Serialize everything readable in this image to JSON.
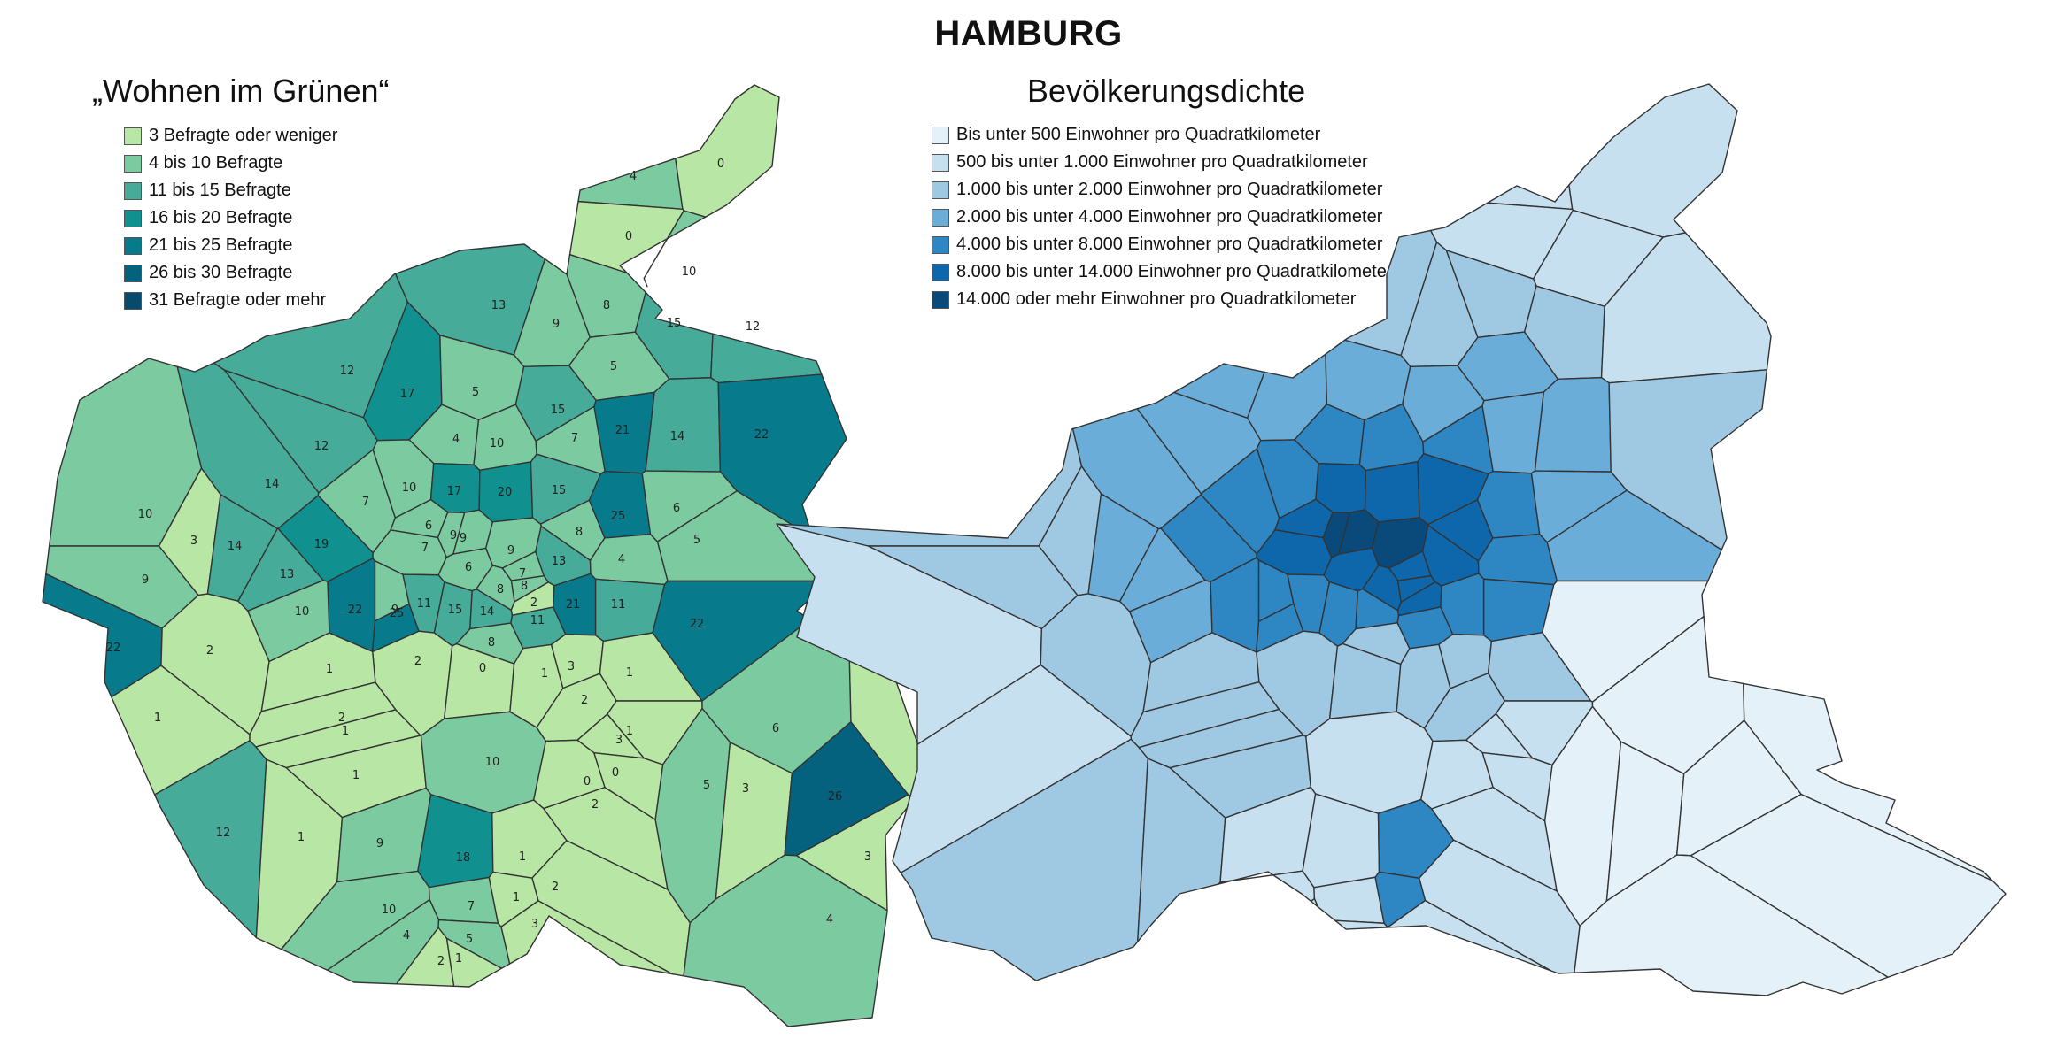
{
  "title": "HAMBURG",
  "left_map": {
    "subtitle": "„Wohnen im Grünen“",
    "legend": [
      {
        "label": "3 Befragte oder weniger",
        "color": "#b8e6a4"
      },
      {
        "label": "4 bis 10 Befragte",
        "color": "#7ccba0"
      },
      {
        "label": "11 bis 15 Befragte",
        "color": "#46ab99"
      },
      {
        "label": "16 bis 20 Befragte",
        "color": "#10918f"
      },
      {
        "label": "21 bis 25 Befragte",
        "color": "#077a8c"
      },
      {
        "label": "26 bis 30 Befragte",
        "color": "#04627e"
      },
      {
        "label": "31 Befragte oder mehr",
        "color": "#044b6e"
      }
    ],
    "district_values": [
      "4",
      "0",
      "0",
      "10",
      "13",
      "9",
      "8",
      "15",
      "12",
      "5",
      "12",
      "17",
      "5",
      "15",
      "4",
      "10",
      "7",
      "21",
      "14",
      "22",
      "12",
      "14",
      "7",
      "10",
      "17",
      "20",
      "15",
      "8",
      "3",
      "10",
      "14",
      "19",
      "6",
      "9",
      "7",
      "25",
      "6",
      "5",
      "9",
      "9",
      "13",
      "4",
      "6",
      "9",
      "8",
      "8",
      "7",
      "13",
      "22",
      "11",
      "10",
      "9",
      "22",
      "25",
      "11",
      "15",
      "14",
      "8",
      "2",
      "21",
      "11",
      "22",
      "2",
      "2",
      "1",
      "1",
      "0",
      "1",
      "3",
      "1",
      "2",
      "1",
      "1",
      "2",
      "1",
      "10",
      "3",
      "5",
      "3",
      "1",
      "6",
      "26",
      "2",
      "0",
      "0",
      "12",
      "1",
      "9",
      "18",
      "1",
      "10",
      "7",
      "4",
      "5",
      "2",
      "3",
      "4",
      "1",
      "2",
      "1",
      "3"
    ]
  },
  "right_map": {
    "subtitle": "Bevölkerungsdichte",
    "legend": [
      {
        "label": "Bis unter 500 Einwohner pro Quadratkilometer",
        "color": "#e4f1f8"
      },
      {
        "label": "500 bis unter 1.000 Einwohner pro Quadratkilometer",
        "color": "#c6e0ef"
      },
      {
        "label": "1.000 bis unter 2.000 Einwohner pro Quadratkilometer",
        "color": "#9fc8e2"
      },
      {
        "label": "2.000 bis unter 4.000 Einwohner pro Quadratkilometer",
        "color": "#6aadd8"
      },
      {
        "label": "4.000 bis unter 8.000 Einwohner pro Quadratkilometer",
        "color": "#2e86c3"
      },
      {
        "label": "8.000 bis unter 14.000 Einwohner pro Quadratkilometer",
        "color": "#0f67ab"
      },
      {
        "label": "14.000 oder mehr Einwohner pro Quadratkilometer",
        "color": "#0a4a7b"
      }
    ]
  }
}
